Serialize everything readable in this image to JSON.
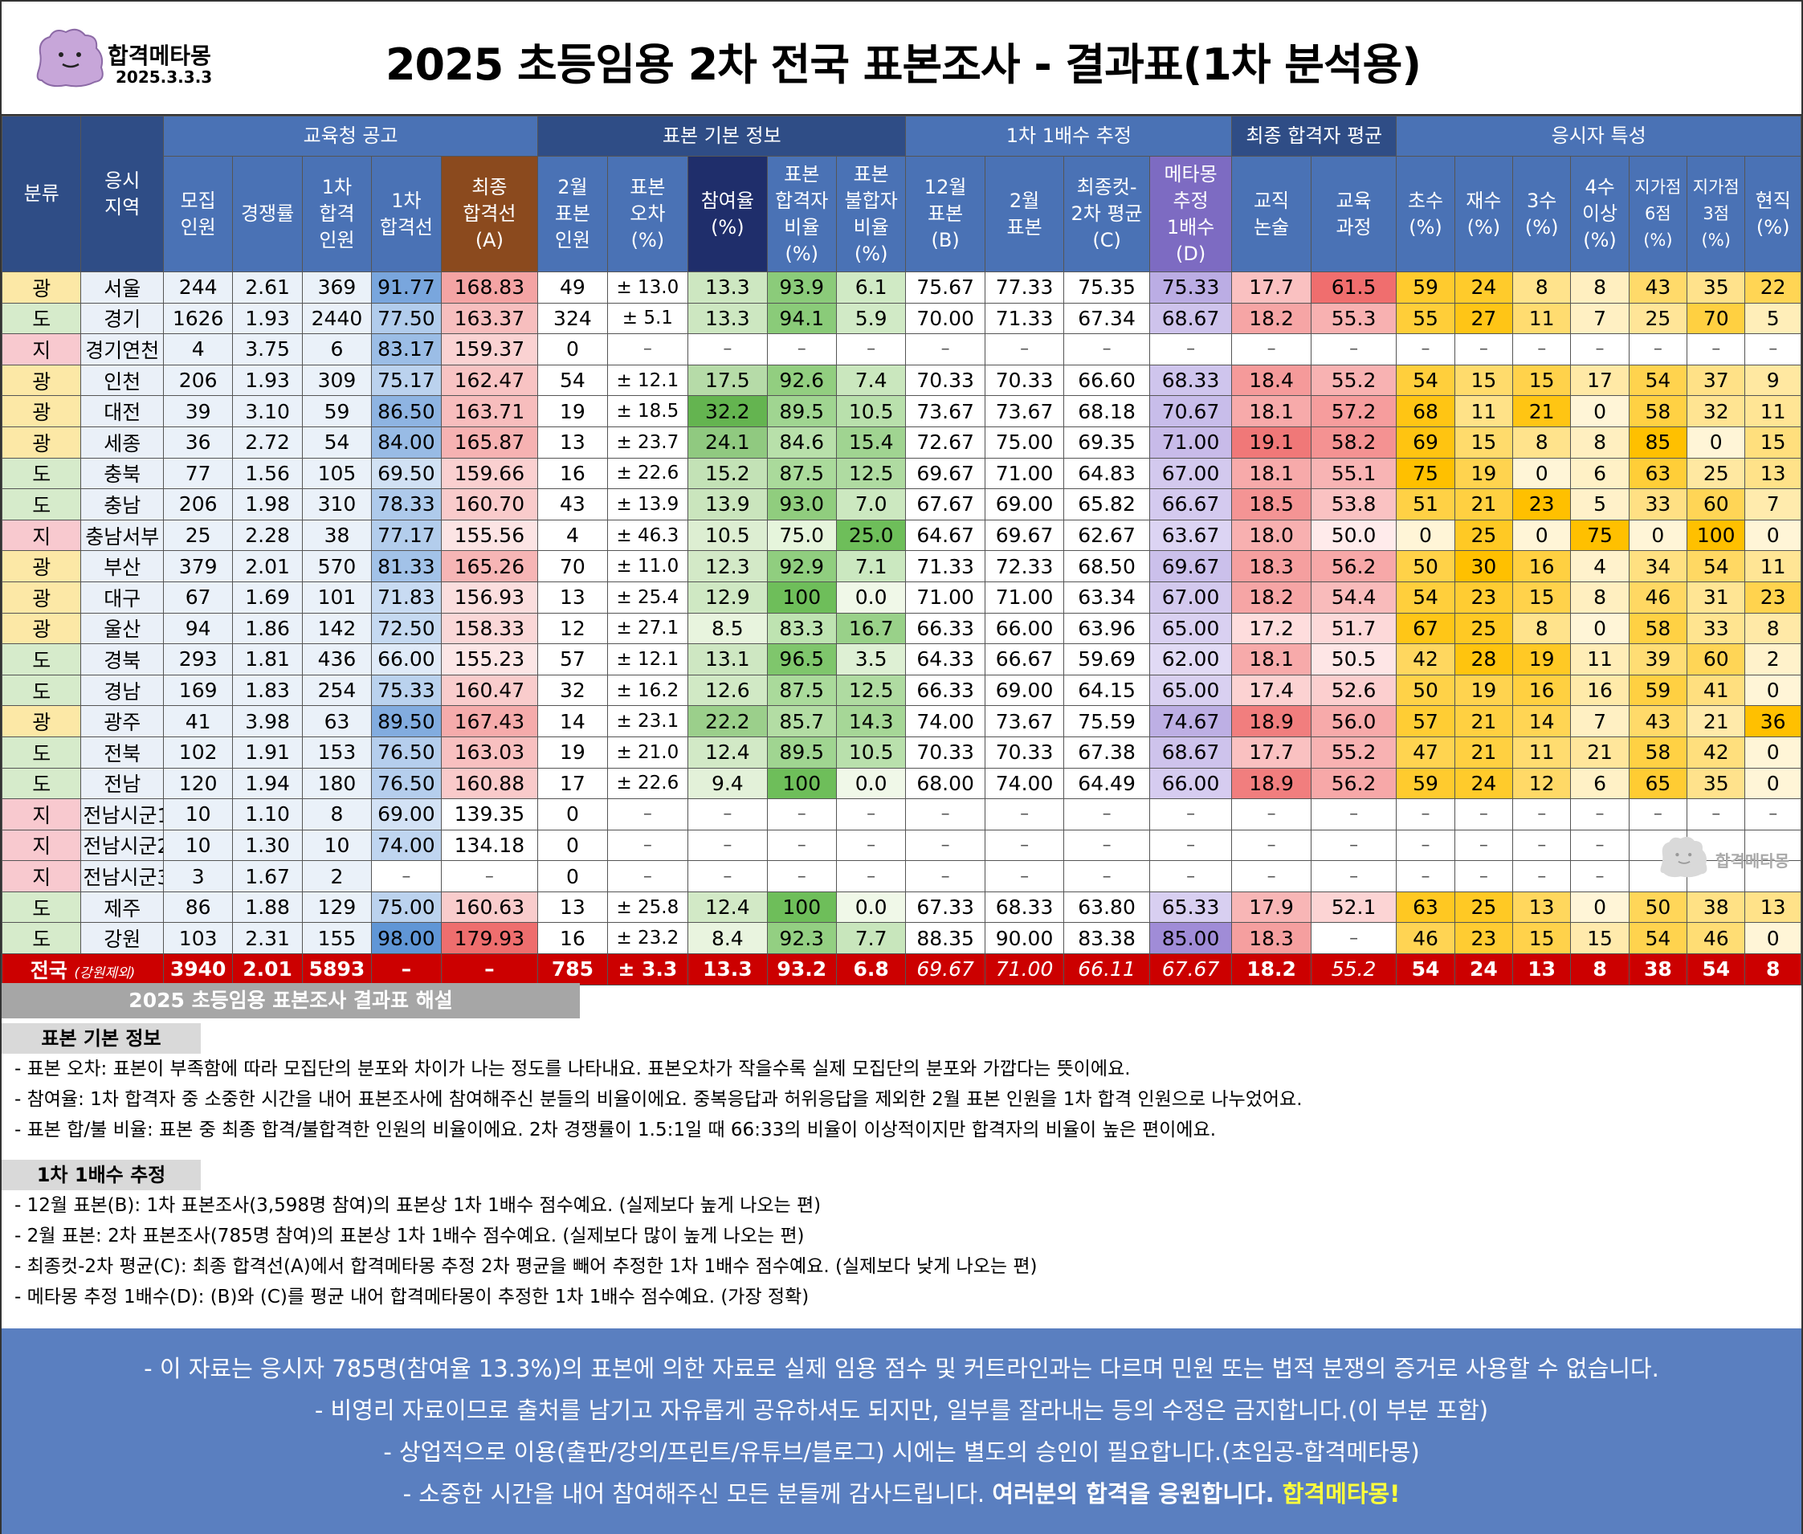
{
  "brand": {
    "name": "합격메타몽",
    "date": "2025.3.3.3"
  },
  "title": "2025 초등임용 2차 전국 표본조사 - 결과표(1차 분석용)",
  "groups": {
    "g1": "교육청 공고",
    "g2": "표본 기본 정보",
    "g3": "1차 1배수 추정",
    "g4": "최종 합격자 평균",
    "g5": "응시자 특성"
  },
  "cols": {
    "c1": "분류",
    "c2": "응시\n지역",
    "c3": "모집\n인원",
    "c4": "경쟁률",
    "c5": "1차\n합격\n인원",
    "c6": "1차\n합격선",
    "c7": "최종\n합격선\n(A)",
    "c8": "2월\n표본\n인원",
    "c9": "표본\n오차\n(%)",
    "c10": "참여율\n(%)",
    "c11": "표본\n합격자\n비율\n(%)",
    "c12": "표본\n불합자\n비율\n(%)",
    "c13": "12월\n표본\n(B)",
    "c14": "2월\n표본",
    "c15": "최종컷-\n2차 평균\n(C)",
    "c16": "메타몽\n추정\n1배수\n(D)",
    "c17": "교직\n논술",
    "c18": "교육\n과정",
    "c19": "초수\n(%)",
    "c20": "재수\n(%)",
    "c21": "3수\n(%)",
    "c22": "4수\n이상\n(%)",
    "c23": "지가점\n6점\n(%)",
    "c24": "지가점\n3점\n(%)",
    "c25": "현직\n(%)"
  },
  "rows": [
    [
      "광",
      "서울",
      "244",
      "2.61",
      "369",
      "91.77",
      "168.83",
      "49",
      "± 13.0",
      "13.3",
      "93.9",
      "6.1",
      "75.67",
      "77.33",
      "75.35",
      "75.33",
      "17.7",
      "61.5",
      "59",
      "24",
      "8",
      "8",
      "43",
      "35",
      "22"
    ],
    [
      "도",
      "경기",
      "1626",
      "1.93",
      "2440",
      "77.50",
      "163.37",
      "324",
      "± 5.1",
      "13.3",
      "94.1",
      "5.9",
      "70.00",
      "71.33",
      "67.34",
      "68.67",
      "18.2",
      "55.3",
      "55",
      "27",
      "11",
      "7",
      "25",
      "70",
      "5"
    ],
    [
      "지",
      "경기연천",
      "4",
      "3.75",
      "6",
      "83.17",
      "159.37",
      "0",
      "–",
      "–",
      "–",
      "–",
      "–",
      "–",
      "–",
      "–",
      "–",
      "–",
      "–",
      "–",
      "–",
      "–",
      "–",
      "–",
      "–"
    ],
    [
      "광",
      "인천",
      "206",
      "1.93",
      "309",
      "75.17",
      "162.47",
      "54",
      "± 12.1",
      "17.5",
      "92.6",
      "7.4",
      "70.33",
      "70.33",
      "66.60",
      "68.33",
      "18.4",
      "55.2",
      "54",
      "15",
      "15",
      "17",
      "54",
      "37",
      "9"
    ],
    [
      "광",
      "대전",
      "39",
      "3.10",
      "59",
      "86.50",
      "163.71",
      "19",
      "± 18.5",
      "32.2",
      "89.5",
      "10.5",
      "73.67",
      "73.67",
      "68.18",
      "70.67",
      "18.1",
      "57.2",
      "68",
      "11",
      "21",
      "0",
      "58",
      "32",
      "11"
    ],
    [
      "광",
      "세종",
      "36",
      "2.72",
      "54",
      "84.00",
      "165.87",
      "13",
      "± 23.7",
      "24.1",
      "84.6",
      "15.4",
      "72.67",
      "75.00",
      "69.35",
      "71.00",
      "19.1",
      "58.2",
      "69",
      "15",
      "8",
      "8",
      "85",
      "0",
      "15"
    ],
    [
      "도",
      "충북",
      "77",
      "1.56",
      "105",
      "69.50",
      "159.66",
      "16",
      "± 22.6",
      "15.2",
      "87.5",
      "12.5",
      "69.67",
      "71.00",
      "64.83",
      "67.00",
      "18.1",
      "55.1",
      "75",
      "19",
      "0",
      "6",
      "63",
      "25",
      "13"
    ],
    [
      "도",
      "충남",
      "206",
      "1.98",
      "310",
      "78.33",
      "160.70",
      "43",
      "± 13.9",
      "13.9",
      "93.0",
      "7.0",
      "67.67",
      "69.00",
      "65.82",
      "66.67",
      "18.5",
      "53.8",
      "51",
      "21",
      "23",
      "5",
      "33",
      "60",
      "7"
    ],
    [
      "지",
      "충남서부",
      "25",
      "2.28",
      "38",
      "77.17",
      "155.56",
      "4",
      "± 46.3",
      "10.5",
      "75.0",
      "25.0",
      "64.67",
      "69.67",
      "62.67",
      "63.67",
      "18.0",
      "50.0",
      "0",
      "25",
      "0",
      "75",
      "0",
      "100",
      "0"
    ],
    [
      "광",
      "부산",
      "379",
      "2.01",
      "570",
      "81.33",
      "165.26",
      "70",
      "± 11.0",
      "12.3",
      "92.9",
      "7.1",
      "71.33",
      "72.33",
      "68.50",
      "69.67",
      "18.3",
      "56.2",
      "50",
      "30",
      "16",
      "4",
      "34",
      "54",
      "11"
    ],
    [
      "광",
      "대구",
      "67",
      "1.69",
      "101",
      "71.83",
      "156.93",
      "13",
      "± 25.4",
      "12.9",
      "100",
      "0.0",
      "71.00",
      "71.00",
      "63.34",
      "67.00",
      "18.2",
      "54.4",
      "54",
      "23",
      "15",
      "8",
      "46",
      "31",
      "23"
    ],
    [
      "광",
      "울산",
      "94",
      "1.86",
      "142",
      "72.50",
      "158.33",
      "12",
      "± 27.1",
      "8.5",
      "83.3",
      "16.7",
      "66.33",
      "66.00",
      "63.96",
      "65.00",
      "17.2",
      "51.7",
      "67",
      "25",
      "8",
      "0",
      "58",
      "33",
      "8"
    ],
    [
      "도",
      "경북",
      "293",
      "1.81",
      "436",
      "66.00",
      "155.23",
      "57",
      "± 12.1",
      "13.1",
      "96.5",
      "3.5",
      "64.33",
      "66.67",
      "59.69",
      "62.00",
      "18.1",
      "50.5",
      "42",
      "28",
      "19",
      "11",
      "39",
      "60",
      "2"
    ],
    [
      "도",
      "경남",
      "169",
      "1.83",
      "254",
      "75.33",
      "160.47",
      "32",
      "± 16.2",
      "12.6",
      "87.5",
      "12.5",
      "66.33",
      "69.00",
      "64.15",
      "65.00",
      "17.4",
      "52.6",
      "50",
      "19",
      "16",
      "16",
      "59",
      "41",
      "0"
    ],
    [
      "광",
      "광주",
      "41",
      "3.98",
      "63",
      "89.50",
      "167.43",
      "14",
      "± 23.1",
      "22.2",
      "85.7",
      "14.3",
      "74.00",
      "73.67",
      "75.59",
      "74.67",
      "18.9",
      "56.0",
      "57",
      "21",
      "14",
      "7",
      "43",
      "21",
      "36"
    ],
    [
      "도",
      "전북",
      "102",
      "1.91",
      "153",
      "76.50",
      "163.03",
      "19",
      "± 21.0",
      "12.4",
      "89.5",
      "10.5",
      "70.33",
      "70.33",
      "67.38",
      "68.67",
      "17.7",
      "55.2",
      "47",
      "21",
      "11",
      "21",
      "58",
      "42",
      "0"
    ],
    [
      "도",
      "전남",
      "120",
      "1.94",
      "180",
      "76.50",
      "160.88",
      "17",
      "± 22.6",
      "9.4",
      "100",
      "0.0",
      "68.00",
      "74.00",
      "64.49",
      "66.00",
      "18.9",
      "56.2",
      "59",
      "24",
      "12",
      "6",
      "65",
      "35",
      "0"
    ],
    [
      "지",
      "전남시군1",
      "10",
      "1.10",
      "8",
      "69.00",
      "139.35",
      "0",
      "–",
      "–",
      "–",
      "–",
      "–",
      "–",
      "–",
      "–",
      "–",
      "–",
      "–",
      "–",
      "–",
      "–",
      "–",
      "–",
      "–"
    ],
    [
      "지",
      "전남시군2",
      "10",
      "1.30",
      "10",
      "74.00",
      "134.18",
      "0",
      "–",
      "–",
      "–",
      "–",
      "–",
      "–",
      "–",
      "–",
      "–",
      "–",
      "–",
      "–",
      "–",
      "–",
      "",
      "",
      ""
    ],
    [
      "지",
      "전남시군3",
      "3",
      "1.67",
      "2",
      "–",
      "–",
      "0",
      "–",
      "–",
      "–",
      "–",
      "–",
      "–",
      "–",
      "–",
      "–",
      "–",
      "–",
      "–",
      "–",
      "–",
      "",
      "",
      ""
    ],
    [
      "도",
      "제주",
      "86",
      "1.88",
      "129",
      "75.00",
      "160.63",
      "13",
      "± 25.8",
      "12.4",
      "100",
      "0.0",
      "67.33",
      "68.33",
      "63.80",
      "65.33",
      "17.9",
      "52.1",
      "63",
      "25",
      "13",
      "0",
      "50",
      "38",
      "13"
    ],
    [
      "도",
      "강원",
      "103",
      "2.31",
      "155",
      "98.00",
      "179.93",
      "16",
      "± 23.2",
      "8.4",
      "92.3",
      "7.7",
      "88.35",
      "90.00",
      "83.38",
      "85.00",
      "18.3",
      "–",
      "46",
      "23",
      "15",
      "15",
      "54",
      "46",
      "0"
    ]
  ],
  "total": {
    "label": "전국",
    "note": "(강원제외)",
    "values": [
      "3940",
      "2.01",
      "5893",
      "–",
      "–",
      "785",
      "± 3.3",
      "13.3",
      "93.2",
      "6.8",
      "69.67",
      "71.00",
      "66.11",
      "67.67",
      "18.2",
      "55.2",
      "54",
      "24",
      "13",
      "8",
      "38",
      "54",
      "8"
    ]
  },
  "watermark": "합격메타몽",
  "notes": {
    "header": "2025 초등임용 표본조사 결과표 해설",
    "sec1": "표본 기본 정보",
    "n1": "- 표본 오차: 표본이 부족함에 따라 모집단의 분포와 차이가 나는 정도를 나타내요. 표본오차가 작을수록 실제 모집단의 분포와 가깝다는 뜻이에요.",
    "n2": "- 참여율: 1차 합격자 중 소중한 시간을 내어 표본조사에 참여해주신 분들의 비율이에요. 중복응답과 허위응답을 제외한 2월 표본 인원을 1차 합격 인원으로 나누었어요.",
    "n3": "- 표본 합/불 비율: 표본 중 최종 합격/불합격한 인원의 비율이에요. 2차 경쟁률이 1.5:1일 때 66:33의 비율이 이상적이지만 합격자의 비율이 높은 편이에요.",
    "sec2": "1차 1배수 추정",
    "n4": "- 12월 표본(B): 1차 표본조사(3,598명 참여)의 표본상 1차 1배수 점수예요. (실제보다 높게 나오는 편)",
    "n5": "- 2월 표본: 2차 표본조사(785명 참여)의 표본상 1차 1배수 점수예요. (실제보다 많이 높게 나오는 편)",
    "n6": "- 최종컷-2차 평균(C): 최종 합격선(A)에서 합격메타몽 추정 2차 평균을 빼어 추정한 1차 1배수 점수예요. (실제보다 낮게 나오는 편)",
    "n7": "- 메타몽 추정 1배수(D): (B)와 (C)를 평균 내어 합격메타몽이 추정한 1차 1배수 점수예요. (가장 정확)"
  },
  "footer": {
    "f1": "- 이 자료는 응시자 785명(참여율 13.3%)의 표본에 의한 자료로 실제 임용 점수 및 커트라인과는 다르며 민원 또는 법적 분쟁의 증거로 사용할 수 없습니다.",
    "f2": "- 비영리 자료이므로 출처를 남기고 자유롭게 공유하셔도 되지만, 일부를 잘라내는 등의 수정은 금지합니다.(이 부분 포함)",
    "f3": "- 상업적으로 이용(출판/강의/프린트/유튜브/블로그) 시에는 별도의 승인이 필요합니다.(초임공-합격메타몽)",
    "f4a": "- 소중한 시간을 내어 참여해주신 모든 분들께 감사드립니다. ",
    "f4b": "여러분의 합격을 응원합니다.",
    "f4c": " 합격메타몽!"
  },
  "colors": {
    "header_blue": "#4a72b5",
    "header_dark": "#2f4d86",
    "cut_brown": "#8b4a1e",
    "meta_purple": "#7d6bc2",
    "total_red": "#cc0000",
    "footer_blue": "#5a7fc0",
    "gwang": "#fce8a6",
    "do": "#d6ebcb",
    "ji": "#f8c9cf"
  },
  "icons": {
    "logo": "ditto-blob-icon",
    "watermark": "ditto-blob-icon"
  }
}
